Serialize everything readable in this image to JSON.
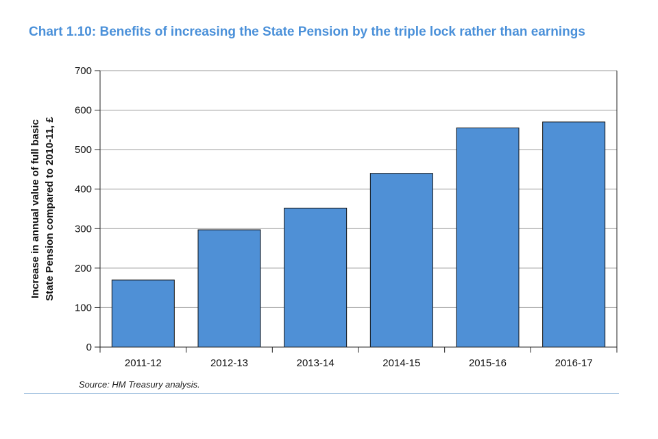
{
  "chart_data": {
    "type": "bar",
    "title": "Chart 1.10: Benefits of increasing the State Pension by the triple lock rather than earnings",
    "xlabel": "",
    "ylabel_lines": [
      "Increase in annual value of full basic",
      "State Pension compared to 2010-11, £"
    ],
    "categories": [
      "2011-12",
      "2012-13",
      "2013-14",
      "2014-15",
      "2015-16",
      "2016-17"
    ],
    "values": [
      170,
      297,
      352,
      440,
      555,
      570
    ],
    "ylim": [
      0,
      700
    ],
    "yticks": [
      0,
      100,
      200,
      300,
      400,
      500,
      600,
      700
    ],
    "grid": true,
    "bar_color": "#4f90d6",
    "source": "Source: HM Treasury analysis."
  }
}
